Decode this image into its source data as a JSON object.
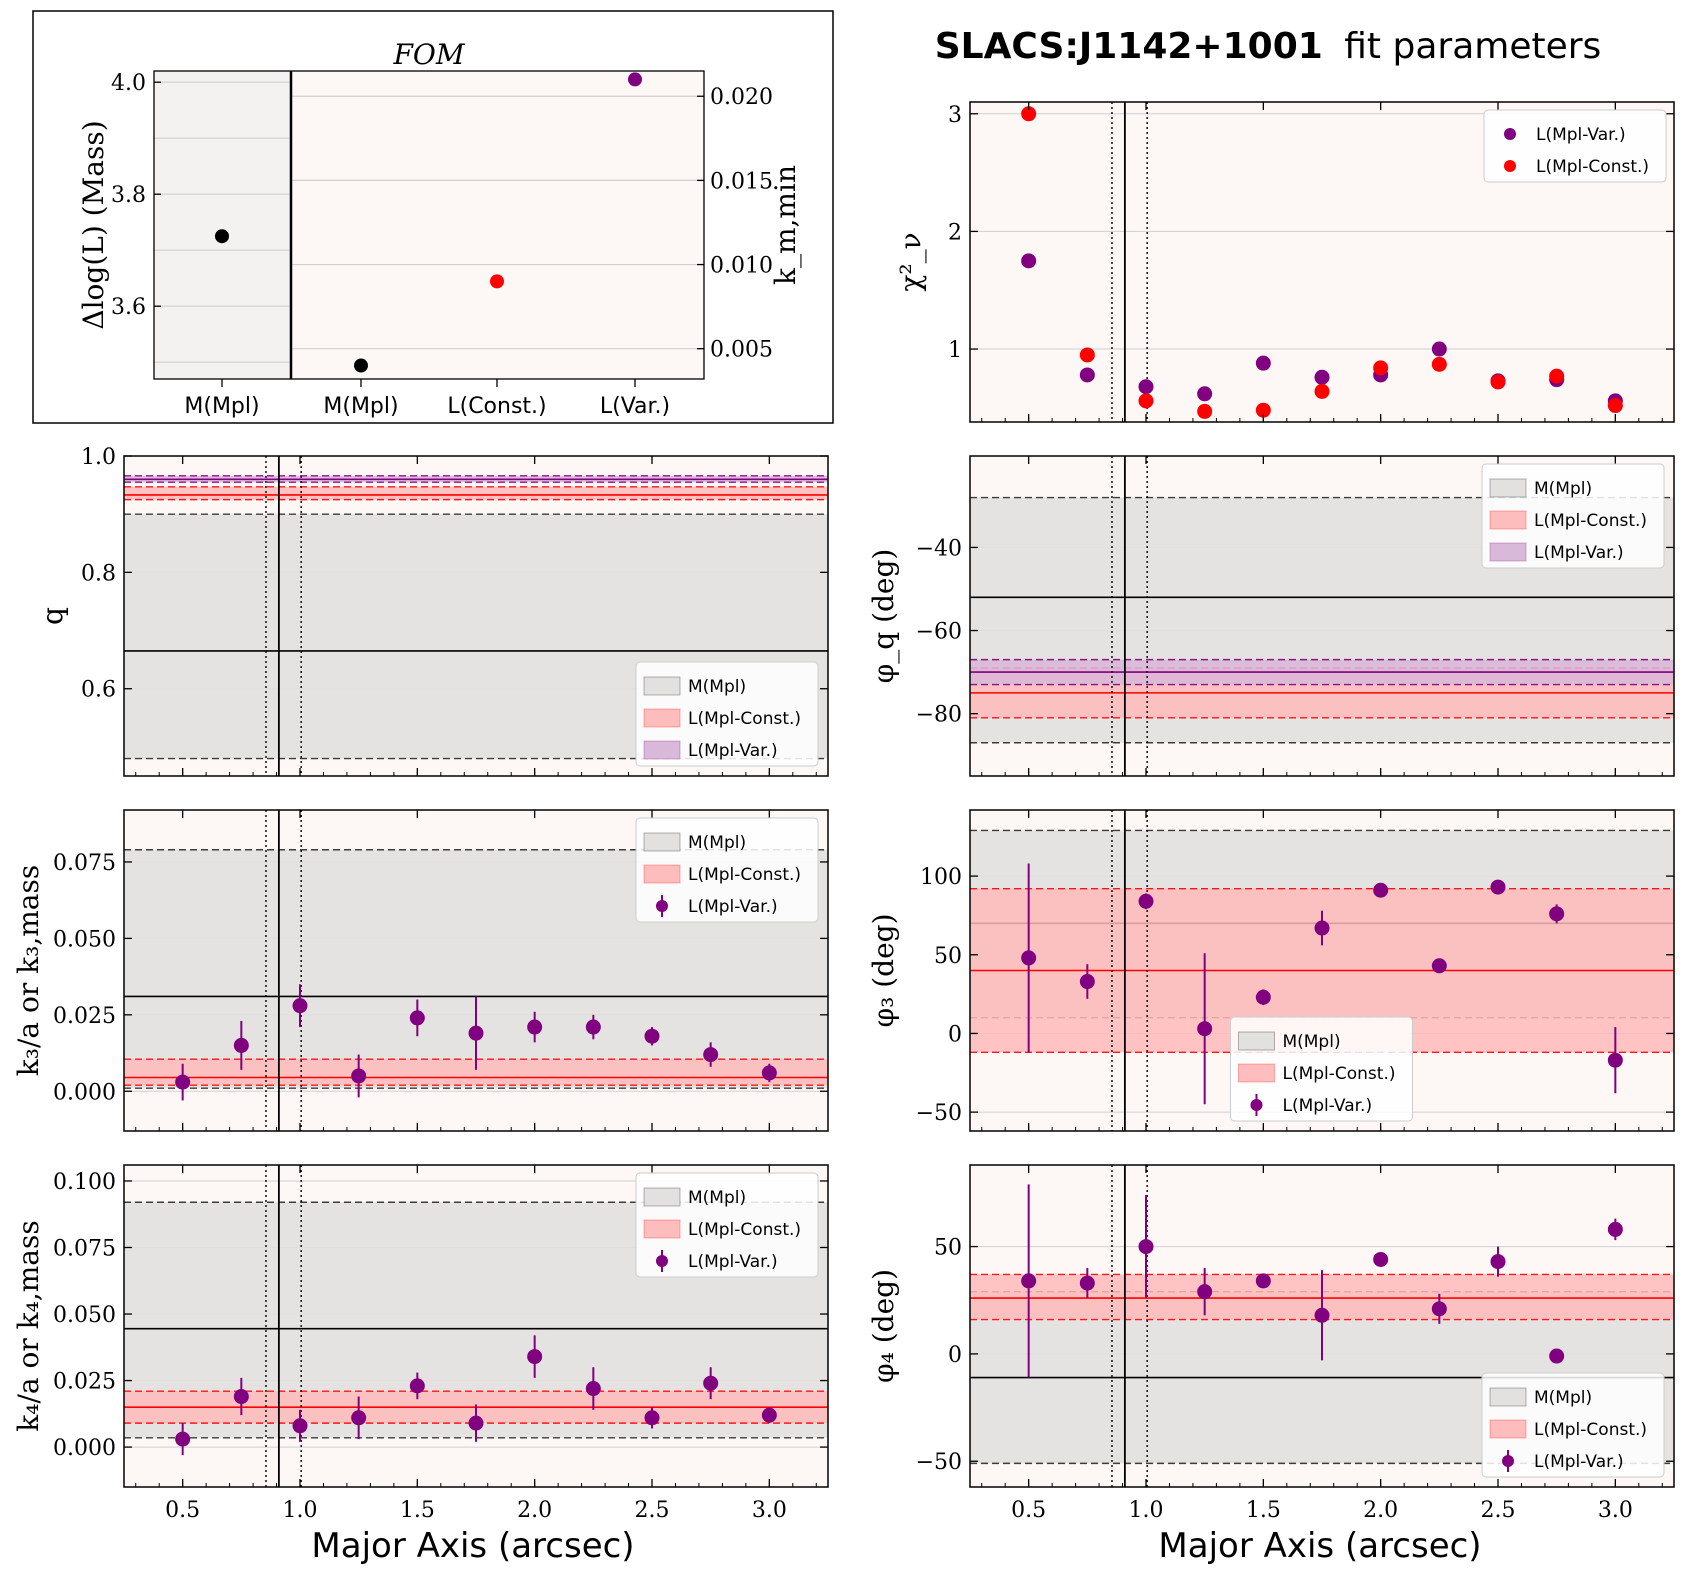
{
  "suptitle_bold": "SLACS:J1142+1001",
  "suptitle_rest": "fit parameters",
  "xlabel": "Major Axis (arcsec)",
  "colors": {
    "purple": "#800080",
    "red": "#ff0000",
    "black": "#000000",
    "bg": "#fdf8f6",
    "grey_band": "#e2e0df",
    "red_band": "#ffbaba",
    "purple_band": "#d8b6d8"
  },
  "chart_data": [
    {
      "id": "fom",
      "type": "scatter",
      "title": "FOM",
      "ylabel_left": "Δlog(L) (Mass)",
      "ylabel_right": "k_m,min",
      "categories": [
        "M(Mpl)",
        "M(Mpl)",
        "L(Const.)",
        "L(Var.)"
      ],
      "left_points": [
        {
          "category": 0,
          "value": 3.725,
          "color": "#000000"
        }
      ],
      "right_points": [
        {
          "category": 1,
          "value": 0.004,
          "color": "#000000"
        },
        {
          "category": 2,
          "value": 0.009,
          "color": "#ff0000"
        },
        {
          "category": 3,
          "value": 0.021,
          "color": "#800080"
        }
      ],
      "ylim_left": [
        3.47,
        4.02
      ],
      "yticks_left": [
        "3.6",
        "3.8",
        "4.0"
      ],
      "ylim_right": [
        0.0032,
        0.0215
      ],
      "yticks_right": [
        "0.005",
        "0.010",
        "0.015",
        "0.020"
      ],
      "grid": true
    },
    {
      "id": "chi2",
      "type": "scatter",
      "ylabel": "χ²_ν",
      "ylim": [
        0.38,
        3.1
      ],
      "yticks": [
        "1",
        "2",
        "3"
      ],
      "legend": [
        "L(Mpl-Var.)",
        "L(Mpl-Const.)"
      ],
      "legend_loc": "upper right",
      "series": [
        {
          "name": "L(Mpl-Var.)",
          "color": "#800080",
          "x": [
            0.5,
            0.75,
            1.0,
            1.25,
            1.5,
            1.75,
            2.0,
            2.25,
            2.5,
            2.75,
            3.0
          ],
          "y": [
            1.75,
            0.78,
            0.68,
            0.62,
            0.88,
            0.76,
            0.78,
            1.0,
            0.73,
            0.74,
            0.56
          ]
        },
        {
          "name": "L(Mpl-Const.)",
          "color": "#ff0000",
          "x": [
            0.5,
            0.75,
            1.0,
            1.25,
            1.5,
            1.75,
            2.0,
            2.25,
            2.5,
            2.75,
            3.0
          ],
          "y": [
            3.0,
            0.95,
            0.56,
            0.47,
            0.48,
            0.64,
            0.84,
            0.87,
            0.72,
            0.77,
            0.52
          ]
        }
      ]
    },
    {
      "id": "q",
      "type": "scatter",
      "ylabel": "q",
      "ylim": [
        0.45,
        1.0
      ],
      "yticks": [
        "0.6",
        "0.8",
        "1.0"
      ],
      "legend": [
        "M(Mpl)",
        "L(Mpl-Const.)",
        "L(Mpl-Var.)"
      ],
      "legend_loc": "lower right",
      "bands": [
        {
          "name": "M(Mpl)",
          "center": 0.665,
          "lo": 0.48,
          "hi": 0.9,
          "kind": "grey"
        },
        {
          "name": "L(Mpl-Const.)",
          "center": 0.933,
          "lo": 0.925,
          "hi": 0.947,
          "kind": "red"
        },
        {
          "name": "L(Mpl-Var.)",
          "center": 0.96,
          "lo": 0.955,
          "hi": 0.966,
          "kind": "purple"
        }
      ]
    },
    {
      "id": "phiq",
      "type": "scatter",
      "ylabel": "φ_q (deg)",
      "ylim": [
        -95,
        -18
      ],
      "yticks": [
        "-80",
        "-60",
        "-40"
      ],
      "legend": [
        "M(Mpl)",
        "L(Mpl-Const.)",
        "L(Mpl-Var.)"
      ],
      "legend_loc": "upper right",
      "bands": [
        {
          "name": "M(Mpl)",
          "center": -52,
          "lo": -87,
          "hi": -28,
          "kind": "grey"
        },
        {
          "name": "L(Mpl-Const.)",
          "center": -75,
          "lo": -81,
          "hi": -69,
          "kind": "red"
        },
        {
          "name": "L(Mpl-Var.)",
          "center": -70,
          "lo": -73,
          "hi": -67,
          "kind": "purple"
        }
      ]
    },
    {
      "id": "k3",
      "type": "scatter",
      "ylabel": "k₃/a or k₃,mass",
      "ylim": [
        -0.013,
        0.092
      ],
      "yticks": [
        "0.000",
        "0.025",
        "0.050",
        "0.075"
      ],
      "legend": [
        "M(Mpl)",
        "L(Mpl-Const.)",
        "L(Mpl-Var.)"
      ],
      "legend_loc": "upper right",
      "bands": [
        {
          "name": "M(Mpl)",
          "center": 0.031,
          "lo": 0.001,
          "hi": 0.079,
          "kind": "grey"
        },
        {
          "name": "L(Mpl-Const.)",
          "center": 0.0045,
          "lo": 0.002,
          "hi": 0.0105,
          "kind": "red"
        }
      ],
      "series": [
        {
          "name": "L(Mpl-Var.)",
          "color": "#800080",
          "x": [
            0.5,
            0.75,
            1.0,
            1.25,
            1.5,
            1.75,
            2.0,
            2.25,
            2.5,
            2.75,
            3.0
          ],
          "y": [
            0.003,
            0.015,
            0.028,
            0.005,
            0.024,
            0.019,
            0.021,
            0.021,
            0.018,
            0.012,
            0.006
          ],
          "err": [
            0.006,
            0.008,
            0.007,
            0.007,
            0.006,
            0.012,
            0.005,
            0.004,
            0.003,
            0.004,
            0.003
          ]
        }
      ]
    },
    {
      "id": "phi3",
      "type": "scatter",
      "ylabel": "φ₃ (deg)",
      "ylim": [
        -62,
        142
      ],
      "yticks": [
        "-50",
        "0",
        "50",
        "100"
      ],
      "legend": [
        "M(Mpl)",
        "L(Mpl-Const.)",
        "L(Mpl-Var.)"
      ],
      "legend_loc": "lower center",
      "bands": [
        {
          "name": "M(Mpl)",
          "center": 70,
          "lo": 10,
          "hi": 129,
          "kind": "grey"
        },
        {
          "name": "L(Mpl-Const.)",
          "center": 40,
          "lo": -12,
          "hi": 92,
          "kind": "red"
        }
      ],
      "series": [
        {
          "name": "L(Mpl-Var.)",
          "color": "#800080",
          "x": [
            0.5,
            0.75,
            1.0,
            1.25,
            1.5,
            1.75,
            2.0,
            2.25,
            2.5,
            2.75,
            3.0
          ],
          "y": [
            48,
            33,
            84,
            3,
            23,
            67,
            91,
            43,
            93,
            76,
            -17
          ],
          "err": [
            60,
            11,
            5,
            48,
            5,
            11,
            3,
            3,
            3,
            6,
            21
          ]
        }
      ]
    },
    {
      "id": "k4",
      "type": "scatter",
      "ylabel": "k₄/a or k₄,mass",
      "ylim": [
        -0.015,
        0.106
      ],
      "yticks": [
        "0.000",
        "0.025",
        "0.050",
        "0.075",
        "0.100"
      ],
      "legend": [
        "M(Mpl)",
        "L(Mpl-Const.)",
        "L(Mpl-Var.)"
      ],
      "legend_loc": "upper right",
      "bands": [
        {
          "name": "M(Mpl)",
          "center": 0.0445,
          "lo": 0.0035,
          "hi": 0.092,
          "kind": "grey"
        },
        {
          "name": "L(Mpl-Const.)",
          "center": 0.015,
          "lo": 0.009,
          "hi": 0.021,
          "kind": "red"
        }
      ],
      "series": [
        {
          "name": "L(Mpl-Var.)",
          "color": "#800080",
          "x": [
            0.5,
            0.75,
            1.0,
            1.25,
            1.5,
            1.75,
            2.0,
            2.25,
            2.5,
            2.75,
            3.0
          ],
          "y": [
            0.003,
            0.019,
            0.008,
            0.011,
            0.023,
            0.009,
            0.034,
            0.022,
            0.011,
            0.024,
            0.012
          ],
          "err": [
            0.006,
            0.007,
            0.006,
            0.008,
            0.005,
            0.007,
            0.008,
            0.008,
            0.004,
            0.006,
            0.003
          ]
        }
      ]
    },
    {
      "id": "phi4",
      "type": "scatter",
      "ylabel": "φ₄ (deg)",
      "ylim": [
        -62,
        88
      ],
      "yticks": [
        "-50",
        "0",
        "50"
      ],
      "legend": [
        "M(Mpl)",
        "L(Mpl-Const.)",
        "L(Mpl-Var.)"
      ],
      "legend_loc": "lower right",
      "bands": [
        {
          "name": "M(Mpl)",
          "center": -11,
          "lo": -51,
          "hi": 29,
          "kind": "grey"
        },
        {
          "name": "L(Mpl-Const.)",
          "center": 26,
          "lo": 16,
          "hi": 37,
          "kind": "red"
        }
      ],
      "series": [
        {
          "name": "L(Mpl-Var.)",
          "color": "#800080",
          "x": [
            0.5,
            0.75,
            1.0,
            1.25,
            1.5,
            1.75,
            2.0,
            2.25,
            2.5,
            2.75,
            3.0
          ],
          "y": [
            34,
            33,
            50,
            29,
            34,
            18,
            44,
            21,
            43,
            -1,
            58
          ],
          "err": [
            45,
            7,
            24,
            11,
            3,
            21,
            3,
            7,
            7,
            2,
            5
          ]
        }
      ]
    }
  ],
  "x_axis": {
    "xlim": [
      0.25,
      3.25
    ],
    "xticks": [
      "0.5",
      "1.0",
      "1.5",
      "2.0",
      "2.5",
      "3.0"
    ],
    "vline_solid": 0.91,
    "vlines_dotted": [
      0.855,
      1.005
    ]
  }
}
